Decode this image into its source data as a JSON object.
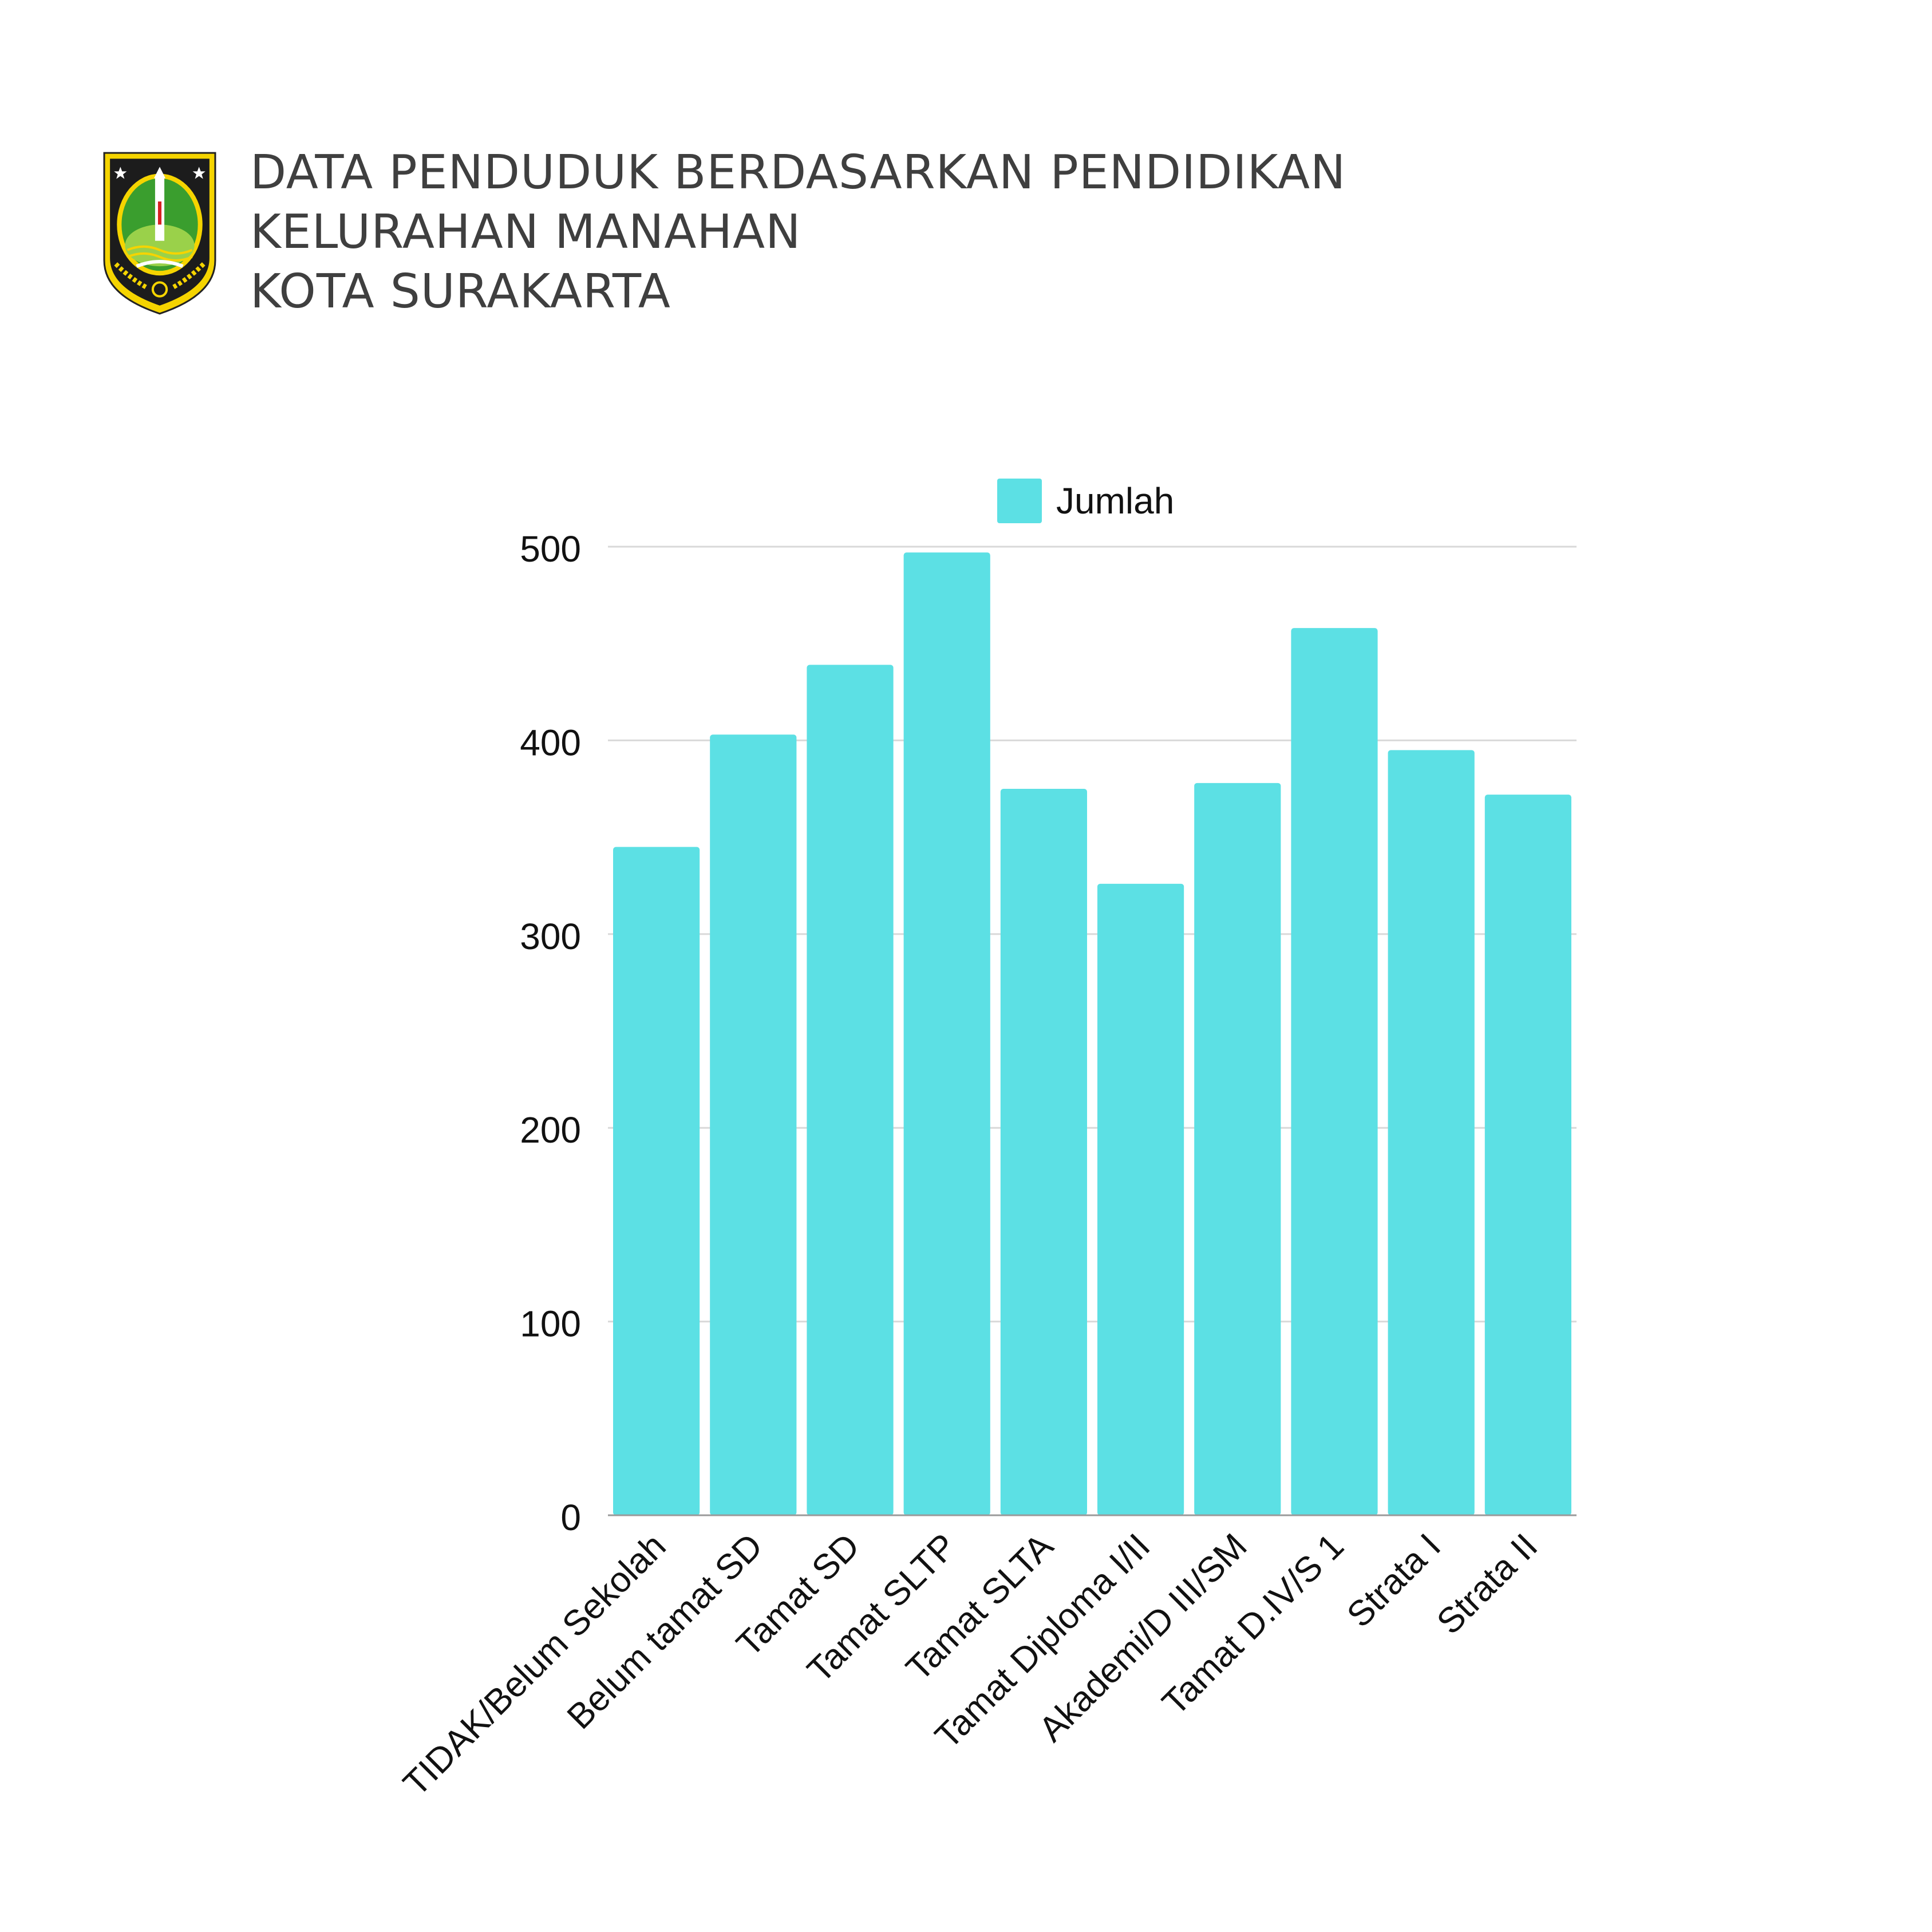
{
  "header": {
    "title_lines": [
      "DATA PENDUDUK BERDASARKAN PENDIDIKAN",
      "KELURAHAN MANAHAN",
      "KOTA SURAKARTA"
    ]
  },
  "colors": {
    "bar": "#5ce0e4",
    "grid": "#d9d9d9",
    "axis": "#9a9a9a",
    "text": "#111111",
    "title": "#3f3f3f",
    "logo_green": "#3a9e2e",
    "logo_yellow": "#f5d400",
    "logo_dark": "#1c1c1c"
  },
  "chart_data": {
    "type": "bar",
    "title": "",
    "xlabel": "",
    "ylabel": "",
    "legend": "top",
    "grid": true,
    "ylim": [
      0,
      500
    ],
    "yticks": [
      0,
      100,
      200,
      300,
      400,
      500
    ],
    "categories": [
      "TIDAK/Belum Sekolah",
      "Belum tamat SD",
      "Tamat SD",
      "Tamat SLTP",
      "Tamat SLTA",
      "Tamat Diploma I/II",
      "Akademi/D III/SM",
      "Tamat D.IV/S 1",
      "Strata I",
      "Strata II"
    ],
    "series": [
      {
        "name": "Jumlah",
        "values": [
          345,
          403,
          439,
          497,
          375,
          326,
          378,
          458,
          395,
          372
        ]
      }
    ]
  }
}
